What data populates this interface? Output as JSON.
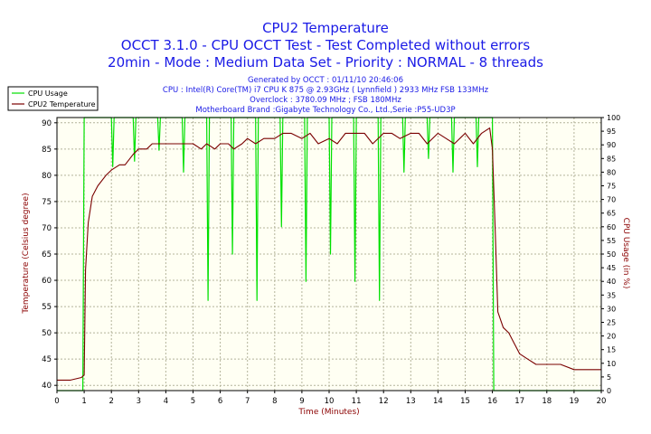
{
  "header": {
    "title": "CPU2 Temperature",
    "subtitle1": "OCCT 3.1.0 - CPU OCCT Test - Test Completed without errors",
    "subtitle2": "20min - Mode : Medium Data Set - Priority : NORMAL - 8 threads"
  },
  "info": {
    "line1": "Generated by OCCT : 01/11/10 20:46:06",
    "line2": "CPU : Intel(R) Core(TM) i7 CPU K 875 @ 2.93GHz ( Lynnfield ) 2933 MHz FSB 133MHz",
    "line3": "Overclock : 3780.09 MHz ; FSB 180MHz",
    "line4": "Motherboard Brand :Gigabyte Technology Co., Ltd.,Serie :P55-UD3P"
  },
  "colors": {
    "title": "#1a1ae6",
    "temperature": "#7a0000",
    "usage": "#00e000",
    "grid": "#b4b49b",
    "plot_bg": "#fffff3",
    "axis_label": "#8b0000"
  },
  "chart_data": {
    "type": "line",
    "title": "CPU2 Temperature",
    "xlabel": "Time (Minutes)",
    "ylabel_left": "Temperature (Celsius degree)",
    "ylabel_right": "CPU Usage (in %)",
    "xlim": [
      0,
      20
    ],
    "ylim_left": [
      39,
      91
    ],
    "ylim_right": [
      0,
      100
    ],
    "x_ticks": [
      0,
      1,
      2,
      3,
      4,
      5,
      6,
      7,
      8,
      9,
      10,
      11,
      12,
      13,
      14,
      15,
      16,
      17,
      18,
      19,
      20
    ],
    "y_ticks_left": [
      40,
      45,
      50,
      55,
      60,
      65,
      70,
      75,
      80,
      85,
      90
    ],
    "y_ticks_right": [
      0,
      5,
      10,
      15,
      20,
      25,
      30,
      35,
      40,
      45,
      50,
      55,
      60,
      65,
      70,
      75,
      80,
      85,
      90,
      95,
      100
    ],
    "grid": true,
    "legend_position": "top-left",
    "legend": [
      "CPU Usage",
      "CPU2 Temperature"
    ],
    "series": [
      {
        "name": "CPU2 Temperature",
        "axis": "left",
        "x": [
          0,
          0.5,
          0.9,
          1.0,
          1.05,
          1.15,
          1.3,
          1.5,
          1.8,
          2.0,
          2.3,
          2.5,
          2.8,
          3.0,
          3.3,
          3.5,
          3.8,
          4.0,
          4.5,
          5.0,
          5.3,
          5.5,
          5.8,
          6.0,
          6.3,
          6.5,
          6.8,
          7.0,
          7.3,
          7.6,
          8.0,
          8.3,
          8.6,
          9.0,
          9.3,
          9.6,
          10.0,
          10.3,
          10.6,
          11.0,
          11.3,
          11.6,
          12.0,
          12.3,
          12.6,
          13.0,
          13.3,
          13.6,
          14.0,
          14.3,
          14.6,
          15.0,
          15.3,
          15.6,
          15.9,
          16.0,
          16.1,
          16.2,
          16.4,
          16.6,
          16.8,
          17.0,
          17.3,
          17.6,
          18.0,
          18.5,
          19.0,
          19.5,
          19.8,
          20.0
        ],
        "y": [
          41,
          41,
          41.5,
          42,
          62,
          71,
          76,
          78,
          80,
          81,
          82,
          82,
          84,
          85,
          85,
          86,
          86,
          86,
          86,
          86,
          85,
          86,
          85,
          86,
          86,
          85,
          86,
          87,
          86,
          87,
          87,
          88,
          88,
          87,
          88,
          86,
          87,
          86,
          88,
          88,
          88,
          86,
          88,
          88,
          87,
          88,
          88,
          86,
          88,
          87,
          86,
          88,
          86,
          88,
          89,
          85,
          70,
          54,
          51,
          50,
          48,
          46,
          45,
          44,
          44,
          44,
          43,
          43,
          43,
          43
        ]
      },
      {
        "name": "CPU Usage",
        "axis": "right",
        "x": [
          0,
          0.95,
          1.0,
          1.05,
          2.0,
          2.05,
          2.1,
          2.8,
          2.85,
          2.9,
          3.7,
          3.75,
          3.8,
          4.6,
          4.65,
          4.7,
          5.5,
          5.55,
          5.6,
          6.4,
          6.45,
          6.5,
          7.3,
          7.35,
          7.4,
          8.2,
          8.25,
          8.3,
          9.1,
          9.15,
          9.2,
          10.0,
          10.05,
          10.1,
          10.9,
          10.95,
          11.0,
          11.8,
          11.85,
          11.9,
          12.7,
          12.75,
          12.8,
          13.6,
          13.65,
          13.7,
          14.5,
          14.55,
          14.6,
          15.4,
          15.45,
          15.5,
          16.0,
          16.05,
          16.1,
          20.0
        ],
        "y": [
          0,
          0,
          100,
          100,
          100,
          82,
          100,
          100,
          84,
          100,
          100,
          88,
          100,
          100,
          80,
          100,
          100,
          33,
          100,
          100,
          50,
          100,
          100,
          33,
          100,
          100,
          60,
          100,
          100,
          40,
          100,
          100,
          50,
          100,
          100,
          40,
          100,
          100,
          33,
          100,
          100,
          80,
          100,
          100,
          85,
          100,
          100,
          80,
          100,
          100,
          82,
          100,
          100,
          0,
          0,
          0
        ]
      }
    ]
  }
}
